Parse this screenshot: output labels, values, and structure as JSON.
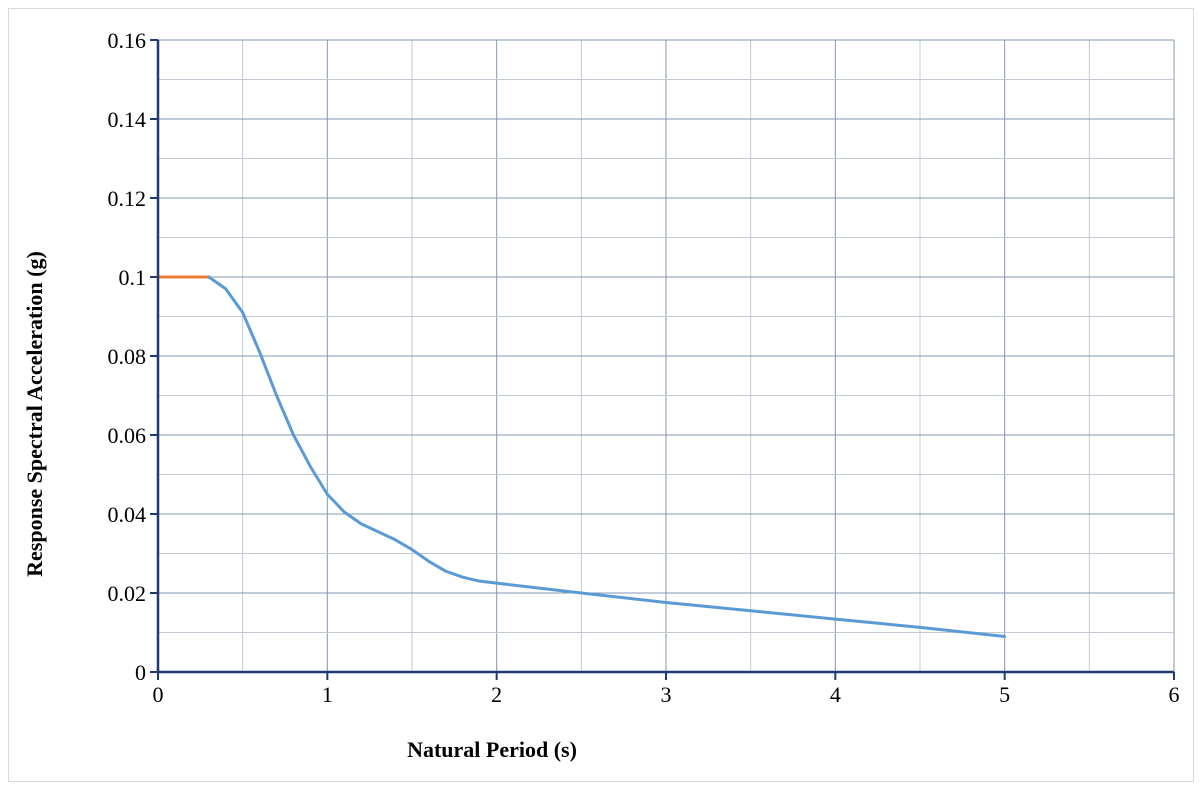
{
  "chart_data": {
    "type": "line",
    "title": "",
    "xlabel": "Natural Period (s)",
    "ylabel": "Response Spectral Acceleration (g)",
    "xlim": [
      0,
      6
    ],
    "ylim": [
      0,
      0.16
    ],
    "x_ticks": [
      "0",
      "1",
      "2",
      "3",
      "4",
      "5",
      "6"
    ],
    "y_ticks": [
      "0",
      "0.02",
      "0.04",
      "0.06",
      "0.08",
      "0.1",
      "0.12",
      "0.14",
      "0.16"
    ],
    "x_minor_step": 0.5,
    "y_minor_step": 0.01,
    "grid": true,
    "series": [
      {
        "color": "#ED7D31",
        "x": [
          0,
          0.3
        ],
        "y": [
          0.1,
          0.1
        ]
      },
      {
        "color": "#5B9BD5",
        "x": [
          0.3,
          0.4,
          0.5,
          0.6,
          0.7,
          0.8,
          0.9,
          1.0,
          1.1,
          1.2,
          1.3,
          1.4,
          1.5,
          1.6,
          1.7,
          1.8,
          1.9,
          2.0,
          2.5,
          3.0,
          3.5,
          4.0,
          4.5,
          5.0
        ],
        "y": [
          0.1,
          0.097,
          0.091,
          0.081,
          0.07,
          0.06,
          0.052,
          0.045,
          0.0405,
          0.0375,
          0.0355,
          0.0335,
          0.031,
          0.028,
          0.0255,
          0.024,
          0.023,
          0.0225,
          0.02,
          0.0176,
          0.0155,
          0.0134,
          0.0113,
          0.009
        ]
      }
    ]
  }
}
